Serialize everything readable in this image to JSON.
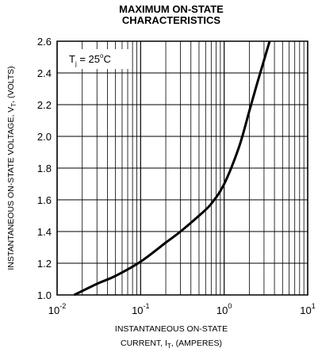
{
  "chart_data": {
    "type": "line",
    "title": "MAXIMUM ON-STATE",
    "subtitle": "CHARACTERISTICS",
    "x_scale": "log",
    "xlim": [
      0.01,
      10
    ],
    "ylim": [
      1.0,
      2.6
    ],
    "grid": true,
    "x_ticks": [
      {
        "value": 0.01,
        "base": "10",
        "exp": "-2"
      },
      {
        "value": 0.1,
        "base": "10",
        "exp": "-1"
      },
      {
        "value": 1,
        "base": "10",
        "exp": "0"
      },
      {
        "value": 10,
        "base": "10",
        "exp": "1"
      }
    ],
    "y_ticks": [
      {
        "value": 1.0,
        "label": "1.0"
      },
      {
        "value": 1.2,
        "label": "1.2"
      },
      {
        "value": 1.4,
        "label": "1.4"
      },
      {
        "value": 1.6,
        "label": "1.6"
      },
      {
        "value": 1.8,
        "label": "1.8"
      },
      {
        "value": 2.0,
        "label": "2.0"
      },
      {
        "value": 2.2,
        "label": "2.2"
      },
      {
        "value": 2.4,
        "label": "2.4"
      },
      {
        "value": 2.6,
        "label": "2.6"
      }
    ],
    "xlabel": {
      "line1": "INSTANTANEOUS ON-STATE",
      "line2_pre": "CURRENT, I",
      "line2_sub": "T",
      "line2_post": ", (AMPERES)"
    },
    "ylabel": {
      "pre": "INSTANTANEOUS ON-STATE VOLTAGE, V",
      "sub": "T",
      "post": ", (VOLTS)"
    },
    "annotation": {
      "pre": "T",
      "sub": "j",
      "mid": " = 25",
      "sup": "o",
      "post": "C"
    },
    "series": [
      {
        "values": [
          {
            "x": 0.016,
            "y": 1.0
          },
          {
            "x": 0.03,
            "y": 1.07
          },
          {
            "x": 0.05,
            "y": 1.12
          },
          {
            "x": 0.1,
            "y": 1.21
          },
          {
            "x": 0.2,
            "y": 1.33
          },
          {
            "x": 0.3,
            "y": 1.4
          },
          {
            "x": 0.5,
            "y": 1.5
          },
          {
            "x": 0.7,
            "y": 1.575
          },
          {
            "x": 1.0,
            "y": 1.7
          },
          {
            "x": 1.5,
            "y": 1.93
          },
          {
            "x": 2.0,
            "y": 2.16
          },
          {
            "x": 2.5,
            "y": 2.34
          },
          {
            "x": 3.0,
            "y": 2.48
          },
          {
            "x": 3.5,
            "y": 2.6
          }
        ]
      }
    ],
    "colors": {
      "line": "#000000",
      "grid": "#000000",
      "background": "#ffffff"
    }
  }
}
